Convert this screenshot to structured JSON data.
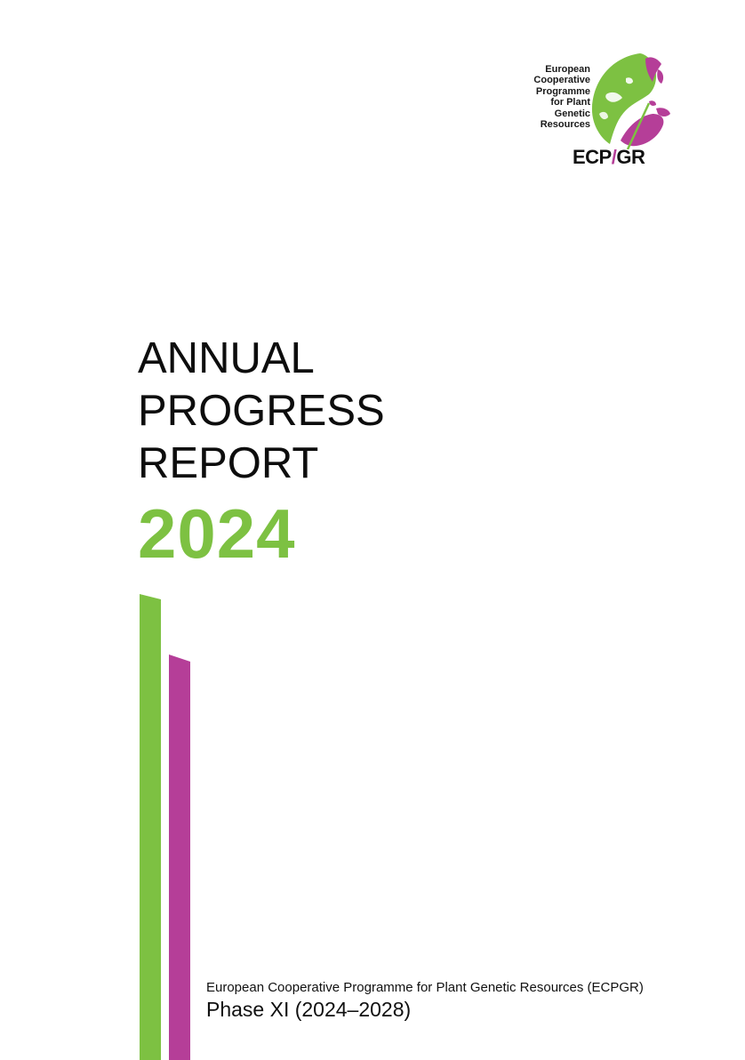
{
  "logo": {
    "lines": [
      "European",
      "Cooperative",
      "Programme",
      "for Plant",
      "Genetic",
      "Resources"
    ],
    "wordmark_left": "ECP",
    "wordmark_right": "GR",
    "colors": {
      "green": "#7dc142",
      "purple": "#b53e98"
    }
  },
  "title": {
    "lines": [
      "ANNUAL",
      "PROGRESS",
      "REPORT"
    ],
    "year": "2024"
  },
  "footer": {
    "organization": "European Cooperative Programme for Plant Genetic Resources (ECPGR)",
    "phase": "Phase XI (2024–2028)"
  },
  "colors": {
    "accent_green": "#7dc142",
    "accent_purple": "#b53e98"
  }
}
